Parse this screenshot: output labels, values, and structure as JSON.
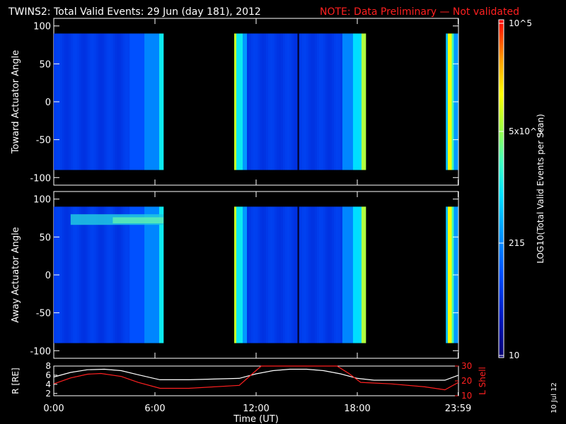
{
  "header": {
    "title": "TWINS2: Total Valid Events: 29 Jun (day 181), 2012",
    "note": "NOTE: Data Preliminary — Not validated",
    "note_color": "#ff2020"
  },
  "panels": {
    "top": {
      "ylabel": "Toward Actuator Angle"
    },
    "bottom": {
      "ylabel": "Away Actuator Angle"
    },
    "orbit": {
      "ylabel_left": "R [RE]",
      "ylabel_right": "L Shell"
    }
  },
  "colorbar": {
    "label": "LOG10(Total Valid Events per Scan)",
    "tick_labels": [
      "10",
      "215",
      "5x10^3",
      "10^5"
    ]
  },
  "footer": {
    "xlabel": "Time (UT)",
    "date_stamp": "10 Jul 12"
  },
  "chart_data": [
    {
      "type": "heatmap",
      "name": "toward",
      "ylabel": "Toward Actuator Angle",
      "ylim": [
        -110,
        110
      ],
      "yticks": [
        100,
        50,
        0,
        -50,
        -100
      ],
      "xlim_hours": [
        0,
        24
      ],
      "data_angle_range": [
        -90,
        90
      ],
      "colorscale": "log10 events per scan, 10 to 1e5",
      "data_intervals_hours": [
        [
          0.0,
          6.5
        ],
        [
          10.7,
          18.5
        ],
        [
          23.25,
          24.0
        ]
      ],
      "gaps_hours": [
        [
          6.5,
          10.7
        ],
        [
          18.5,
          23.25
        ]
      ]
    },
    {
      "type": "heatmap",
      "name": "away",
      "ylabel": "Away Actuator Angle",
      "ylim": [
        -110,
        110
      ],
      "yticks": [
        100,
        50,
        0,
        -50,
        -100
      ],
      "xlim_hours": [
        0,
        24
      ],
      "data_angle_range": [
        -90,
        90
      ],
      "colorscale": "log10 events per scan, 10 to 1e5",
      "data_intervals_hours": [
        [
          0.0,
          6.5
        ],
        [
          10.7,
          18.5
        ],
        [
          23.25,
          24.0
        ]
      ],
      "gaps_hours": [
        [
          6.5,
          10.7
        ],
        [
          18.5,
          23.25
        ]
      ]
    },
    {
      "type": "line",
      "name": "orbit",
      "xlabel": "Time (UT)",
      "x_tick_labels": [
        "0:00",
        "6:00",
        "12:00",
        "18:00",
        "23:59"
      ],
      "x_ticks_hours": [
        0,
        6,
        12,
        18,
        23.98
      ],
      "ylabel_left": "R [RE]",
      "ylim_left": [
        1.5,
        8
      ],
      "yticks_left": [
        2,
        4,
        6,
        8
      ],
      "ylabel_right": "L Shell",
      "ylim_right": [
        10,
        30
      ],
      "yticks_right": [
        10,
        20,
        30
      ],
      "series": [
        {
          "name": "R",
          "axis": "left",
          "color": "#ffffff",
          "x": [
            0,
            1,
            2,
            3,
            4,
            5,
            6.3,
            8,
            11,
            12,
            13,
            14,
            15,
            16,
            17,
            18,
            19,
            21,
            23.2,
            24
          ],
          "y": [
            5.6,
            6.6,
            7.2,
            7.3,
            7.0,
            6.1,
            5.0,
            5.0,
            5.3,
            6.3,
            7.0,
            7.3,
            7.3,
            7.0,
            6.3,
            5.3,
            4.9,
            4.9,
            4.9,
            6.0
          ]
        },
        {
          "name": "L Shell",
          "axis": "right",
          "color": "#ff2020",
          "x": [
            0,
            1,
            2,
            2.8,
            4,
            5,
            6.3,
            8,
            11,
            11.8,
            12.3,
            16.8,
            17.5,
            18.2,
            20,
            22,
            23.2,
            24
          ],
          "y": [
            18,
            22,
            24.5,
            25,
            23,
            19,
            15,
            15,
            17,
            25,
            30,
            30,
            25,
            19,
            18,
            16,
            14,
            19
          ]
        }
      ]
    }
  ]
}
